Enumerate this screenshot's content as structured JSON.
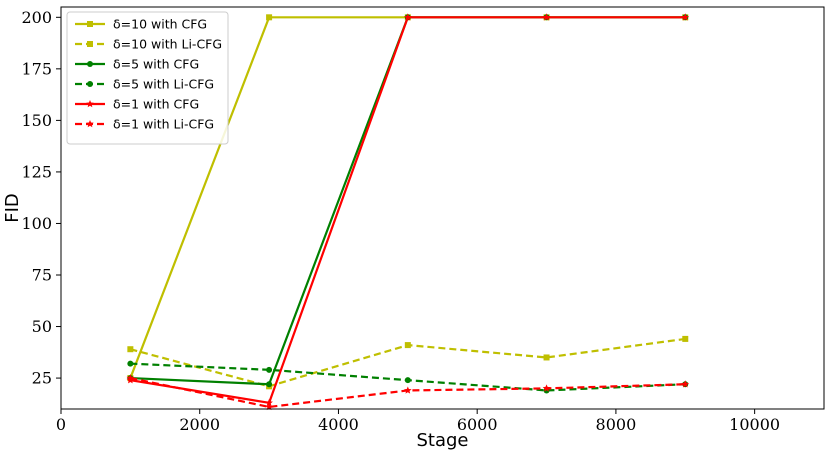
{
  "chart_data": {
    "type": "line",
    "xlabel": "Stage",
    "ylabel": "FID",
    "xlim": [
      0,
      11000
    ],
    "ylim": [
      10,
      205
    ],
    "x_ticks": [
      0,
      2000,
      4000,
      6000,
      8000,
      10000
    ],
    "y_ticks": [
      25,
      50,
      75,
      100,
      125,
      150,
      175,
      200
    ],
    "grid": false,
    "legend_position": "top-left",
    "series": [
      {
        "name": "δ=10 with CFG",
        "color": "#bfbf00",
        "dash": "solid",
        "marker": "square",
        "x": [
          1000,
          3000,
          5000,
          7000,
          9000
        ],
        "y": [
          25,
          200,
          200,
          200,
          200
        ]
      },
      {
        "name": "δ=10 with Li-CFG",
        "color": "#bfbf00",
        "dash": "dashed",
        "marker": "square",
        "x": [
          1000,
          3000,
          5000,
          7000,
          9000
        ],
        "y": [
          39,
          21,
          41,
          35,
          44
        ]
      },
      {
        "name": "δ=5 with CFG",
        "color": "#008000",
        "dash": "solid",
        "marker": "circle",
        "x": [
          1000,
          3000,
          5000,
          7000,
          9000
        ],
        "y": [
          25,
          22,
          200,
          200,
          200
        ]
      },
      {
        "name": "δ=5 with Li-CFG",
        "color": "#008000",
        "dash": "dashed",
        "marker": "circle",
        "x": [
          1000,
          3000,
          5000,
          7000,
          9000
        ],
        "y": [
          32,
          29,
          24,
          19,
          22
        ]
      },
      {
        "name": "δ=1 with CFG",
        "color": "#ff0000",
        "dash": "solid",
        "marker": "star",
        "x": [
          1000,
          3000,
          5000,
          7000,
          9000
        ],
        "y": [
          24,
          13,
          200,
          200,
          200
        ]
      },
      {
        "name": "δ=1 with Li-CFG",
        "color": "#ff0000",
        "dash": "dashed",
        "marker": "star",
        "x": [
          1000,
          3000,
          5000,
          7000,
          9000
        ],
        "y": [
          25,
          11,
          19,
          20,
          22
        ]
      }
    ]
  }
}
